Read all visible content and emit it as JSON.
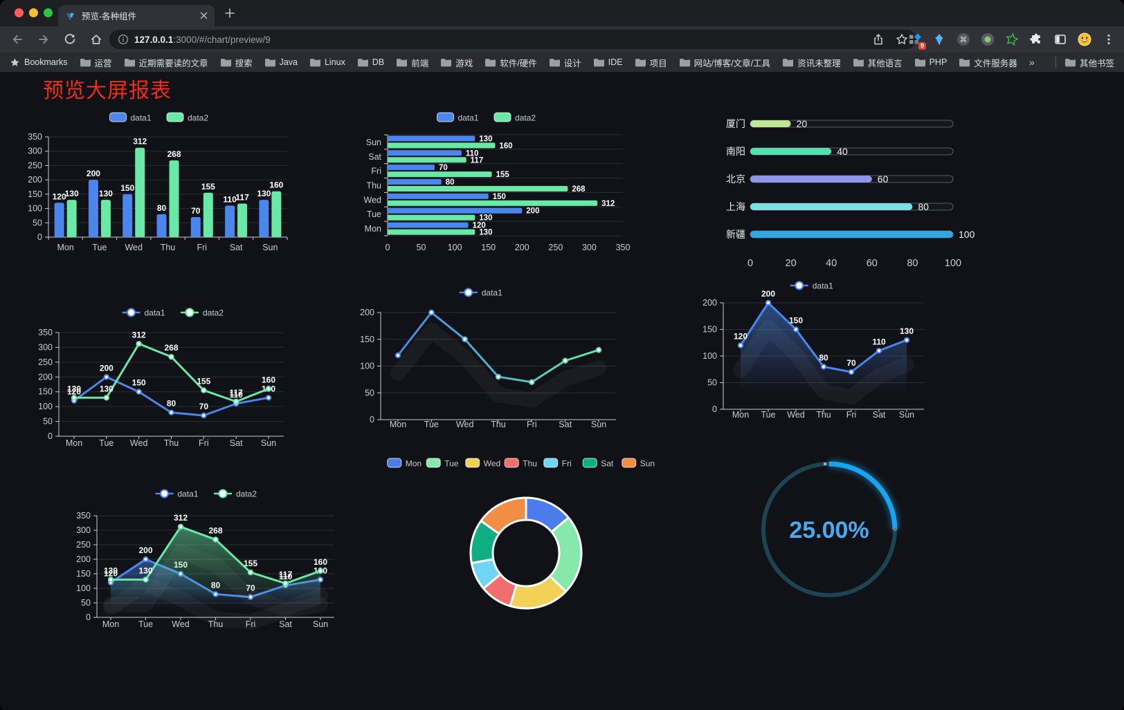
{
  "browser": {
    "tab": {
      "title": "预览-各种组件"
    },
    "new_tab_button": "+",
    "address": {
      "host": "127.0.0.1",
      "rest": ":3000/#/chart/preview/9"
    },
    "actions": {
      "extension_badge": "9"
    },
    "bookmarks_bar": {
      "root_label": "Bookmarks",
      "folders": [
        "运营",
        "近期需要读的文章",
        "搜索",
        "Java",
        "Linux",
        "DB",
        "前端",
        "游戏",
        "软件/硬件",
        "设计",
        "IDE",
        "项目",
        "网站/博客/文章/工具",
        "资讯未整理",
        "其他语言",
        "PHP",
        "文件服务器"
      ],
      "overflow": "»",
      "other_bookmarks": "其他书签"
    }
  },
  "page": {
    "title": "预览大屏报表",
    "title_color": "#ee2d1a",
    "background": "#111217"
  },
  "chart_data": [
    {
      "id": "bar-vertical",
      "type": "bar",
      "categories": [
        "Mon",
        "Tue",
        "Wed",
        "Thu",
        "Fri",
        "Sat",
        "Sun"
      ],
      "series": [
        {
          "name": "data1",
          "color": "#4a86ec",
          "values": [
            120,
            200,
            150,
            80,
            70,
            110,
            130
          ]
        },
        {
          "name": "data2",
          "color": "#69e8a6",
          "values": [
            130,
            130,
            312,
            268,
            155,
            117,
            160
          ]
        }
      ],
      "ylim": [
        0,
        350
      ],
      "yticks": [
        0,
        50,
        100,
        150,
        200,
        250,
        300,
        350
      ],
      "legend_position": "top",
      "grid": true,
      "value_labels": true
    },
    {
      "id": "bar-horizontal",
      "type": "bar-horizontal",
      "categories": [
        "Mon",
        "Tue",
        "Wed",
        "Thu",
        "Fri",
        "Sat",
        "Sun"
      ],
      "display_order_top_to_bottom": [
        "Sun",
        "Sat",
        "Fri",
        "Thu",
        "Wed",
        "Tue",
        "Mon"
      ],
      "series": [
        {
          "name": "data1",
          "color": "#4a86ec",
          "values": [
            120,
            200,
            150,
            80,
            70,
            110,
            130
          ]
        },
        {
          "name": "data2",
          "color": "#69e8a6",
          "values": [
            130,
            130,
            312,
            268,
            155,
            117,
            160
          ]
        }
      ],
      "xlim": [
        0,
        350
      ],
      "xticks": [
        0,
        50,
        100,
        150,
        200,
        250,
        300,
        350
      ],
      "legend_position": "top",
      "value_labels": true
    },
    {
      "id": "city-progress",
      "type": "progress-bars",
      "max": 100,
      "ticks": [
        0,
        20,
        40,
        60,
        80,
        100
      ],
      "items": [
        {
          "label": "厦门",
          "value": 20,
          "color": "#c0e796"
        },
        {
          "label": "南阳",
          "value": 40,
          "color": "#56dfad"
        },
        {
          "label": "北京",
          "value": 60,
          "color": "#8e96e8"
        },
        {
          "label": "上海",
          "value": 80,
          "color": "#7edee8"
        },
        {
          "label": "新疆",
          "value": 100,
          "color": "#32a7e0"
        }
      ]
    },
    {
      "id": "line-two",
      "type": "line",
      "categories": [
        "Mon",
        "Tue",
        "Wed",
        "Thu",
        "Fri",
        "Sat",
        "Sun"
      ],
      "series": [
        {
          "name": "data1",
          "color": "#4a86ec",
          "values": [
            120,
            200,
            150,
            80,
            70,
            110,
            130
          ]
        },
        {
          "name": "data2",
          "color": "#69e8a6",
          "values": [
            130,
            130,
            312,
            268,
            155,
            117,
            160
          ]
        }
      ],
      "ylim": [
        0,
        350
      ],
      "yticks": [
        0,
        50,
        100,
        150,
        200,
        250,
        300,
        350
      ],
      "legend_position": "top",
      "value_labels": true
    },
    {
      "id": "line-gradient",
      "type": "line",
      "categories": [
        "Mon",
        "Tue",
        "Wed",
        "Thu",
        "Fri",
        "Sat",
        "Sun"
      ],
      "series": [
        {
          "name": "data1",
          "color": "#4a86ec",
          "color_gradient": [
            "#4486ec",
            "#63e6a3"
          ],
          "values": [
            120,
            200,
            150,
            80,
            70,
            110,
            130
          ]
        }
      ],
      "ylim": [
        0,
        200
      ],
      "yticks": [
        0,
        50,
        100,
        150,
        200
      ],
      "legend_position": "top",
      "value_labels": false
    },
    {
      "id": "area-single",
      "type": "area",
      "categories": [
        "Mon",
        "Tue",
        "Wed",
        "Thu",
        "Fri",
        "Sat",
        "Sun"
      ],
      "series": [
        {
          "name": "data1",
          "color": "#4a86ec",
          "values": [
            120,
            200,
            150,
            80,
            70,
            110,
            130
          ]
        }
      ],
      "ylim": [
        0,
        200
      ],
      "yticks": [
        0,
        50,
        100,
        150,
        200
      ],
      "legend_position": "top",
      "value_labels": true
    },
    {
      "id": "area-two",
      "type": "area",
      "categories": [
        "Mon",
        "Tue",
        "Wed",
        "Thu",
        "Fri",
        "Sat",
        "Sun"
      ],
      "series": [
        {
          "name": "data1",
          "color": "#4a86ec",
          "values": [
            120,
            200,
            150,
            80,
            70,
            110,
            130
          ]
        },
        {
          "name": "data2",
          "color": "#69e8a6",
          "values": [
            130,
            130,
            312,
            268,
            155,
            117,
            160
          ]
        }
      ],
      "ylim": [
        0,
        350
      ],
      "yticks": [
        0,
        50,
        100,
        150,
        200,
        250,
        300,
        350
      ],
      "legend_position": "top",
      "value_labels": true
    },
    {
      "id": "donut",
      "type": "pie",
      "donut": true,
      "legend_position": "top",
      "items": [
        {
          "label": "Mon",
          "value": 120,
          "color": "#4a7deb"
        },
        {
          "label": "Tue",
          "value": 200,
          "color": "#87e8ab"
        },
        {
          "label": "Wed",
          "value": 150,
          "color": "#f2d158"
        },
        {
          "label": "Thu",
          "value": 80,
          "color": "#f26d6d"
        },
        {
          "label": "Fri",
          "value": 70,
          "color": "#6fd5f2"
        },
        {
          "label": "Sat",
          "value": 110,
          "color": "#0fae85"
        },
        {
          "label": "Sun",
          "value": 130,
          "color": "#f28e43"
        }
      ]
    },
    {
      "id": "gauge",
      "type": "gauge",
      "value": 25,
      "display": "25.00%",
      "color": "#16a6f0",
      "track_color": "#1d4551",
      "text_color": "#4ba9ec"
    }
  ]
}
